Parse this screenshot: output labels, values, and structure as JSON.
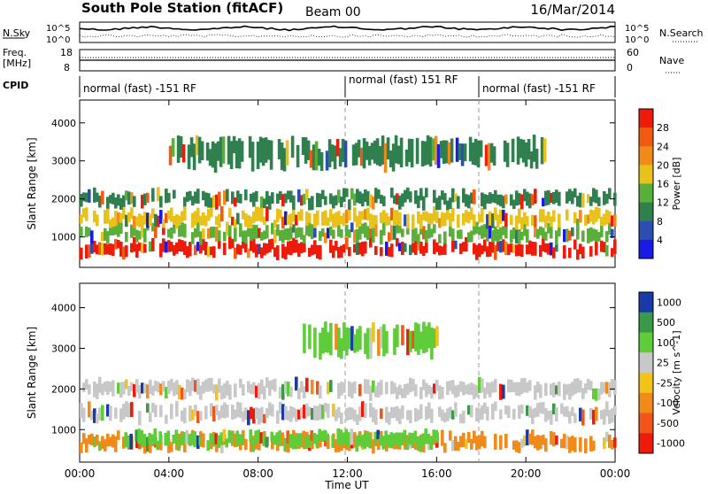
{
  "header": {
    "station": "South Pole Station (fitACF)",
    "beam": "Beam 00",
    "date": "16/Mar/2014"
  },
  "noise_panel": {
    "left_label": "N.Sky",
    "right_label": "N.Search",
    "tick_top": "10^5",
    "tick_bottom": "10^0"
  },
  "freq_panel": {
    "left_label_1": "Freq.",
    "left_label_2": "[MHz]",
    "left_tick_top": "18",
    "left_tick_bottom": "8",
    "right_label": "Nave",
    "right_tick_top": "60",
    "right_tick_bottom": "0"
  },
  "cpid": {
    "label": "CPID",
    "segments": [
      "normal (fast) -151 RF",
      "normal (fast) 151 RF",
      "normal (fast) -151 RF"
    ]
  },
  "chart_data": [
    {
      "type": "heatmap",
      "ylabel": "Slant Range [km]",
      "ylim": [
        200,
        4600
      ],
      "yticks": [
        "1000",
        "2000",
        "3000",
        "4000"
      ],
      "colorbar": {
        "label": "Power [dB]",
        "ticks": [
          "4",
          "8",
          "12",
          "16",
          "20",
          "24",
          "28"
        ],
        "colors": [
          "#1a1ae6",
          "#2a4fb0",
          "#2f7f4f",
          "#5aae3a",
          "#e8c21a",
          "#f08a1a",
          "#f25a12",
          "#ee1a0a"
        ]
      },
      "bands": [
        {
          "x": [
            0,
            24
          ],
          "y": [
            500,
            900
          ],
          "level": 28
        },
        {
          "x": [
            0,
            24
          ],
          "y": [
            900,
            1300
          ],
          "level": 12
        },
        {
          "x": [
            0,
            24
          ],
          "y": [
            1300,
            1700
          ],
          "level": 16
        },
        {
          "x": [
            0,
            24
          ],
          "y": [
            1800,
            2200
          ],
          "level": 8
        },
        {
          "x": [
            4,
            21
          ],
          "y": [
            2800,
            3600
          ],
          "level": 8
        }
      ]
    },
    {
      "type": "heatmap",
      "ylabel": "Slant Range [km]",
      "ylim": [
        200,
        4600
      ],
      "yticks": [
        "1000",
        "2000",
        "3000",
        "4000"
      ],
      "colorbar": {
        "label": "Velocity [m s^-1]",
        "ticks": [
          "1000",
          "500",
          "100",
          "25",
          "-25",
          "-100",
          "-500",
          "-1000"
        ],
        "colors": [
          "#1a3aa8",
          "#3a9a4a",
          "#5fcc3a",
          "#c8c8c8",
          "#f2c41a",
          "#f08a1a",
          "#f2551a",
          "#ee1a0a"
        ]
      },
      "bands": [
        {
          "x": [
            0,
            24
          ],
          "y": [
            500,
            900
          ],
          "level": -100
        },
        {
          "x": [
            2,
            16
          ],
          "y": [
            550,
            950
          ],
          "level": 100
        },
        {
          "x": [
            0,
            24
          ],
          "y": [
            1200,
            1600
          ],
          "level": 0
        },
        {
          "x": [
            0,
            24
          ],
          "y": [
            1800,
            2200
          ],
          "level": 0
        },
        {
          "x": [
            10,
            16
          ],
          "y": [
            2800,
            3600
          ],
          "level": 100
        }
      ]
    }
  ],
  "x_axis": {
    "ticks": [
      "00:00",
      "04:00",
      "08:00",
      "12:00",
      "16:00",
      "20:00",
      "00:00"
    ],
    "label": "Time UT"
  }
}
